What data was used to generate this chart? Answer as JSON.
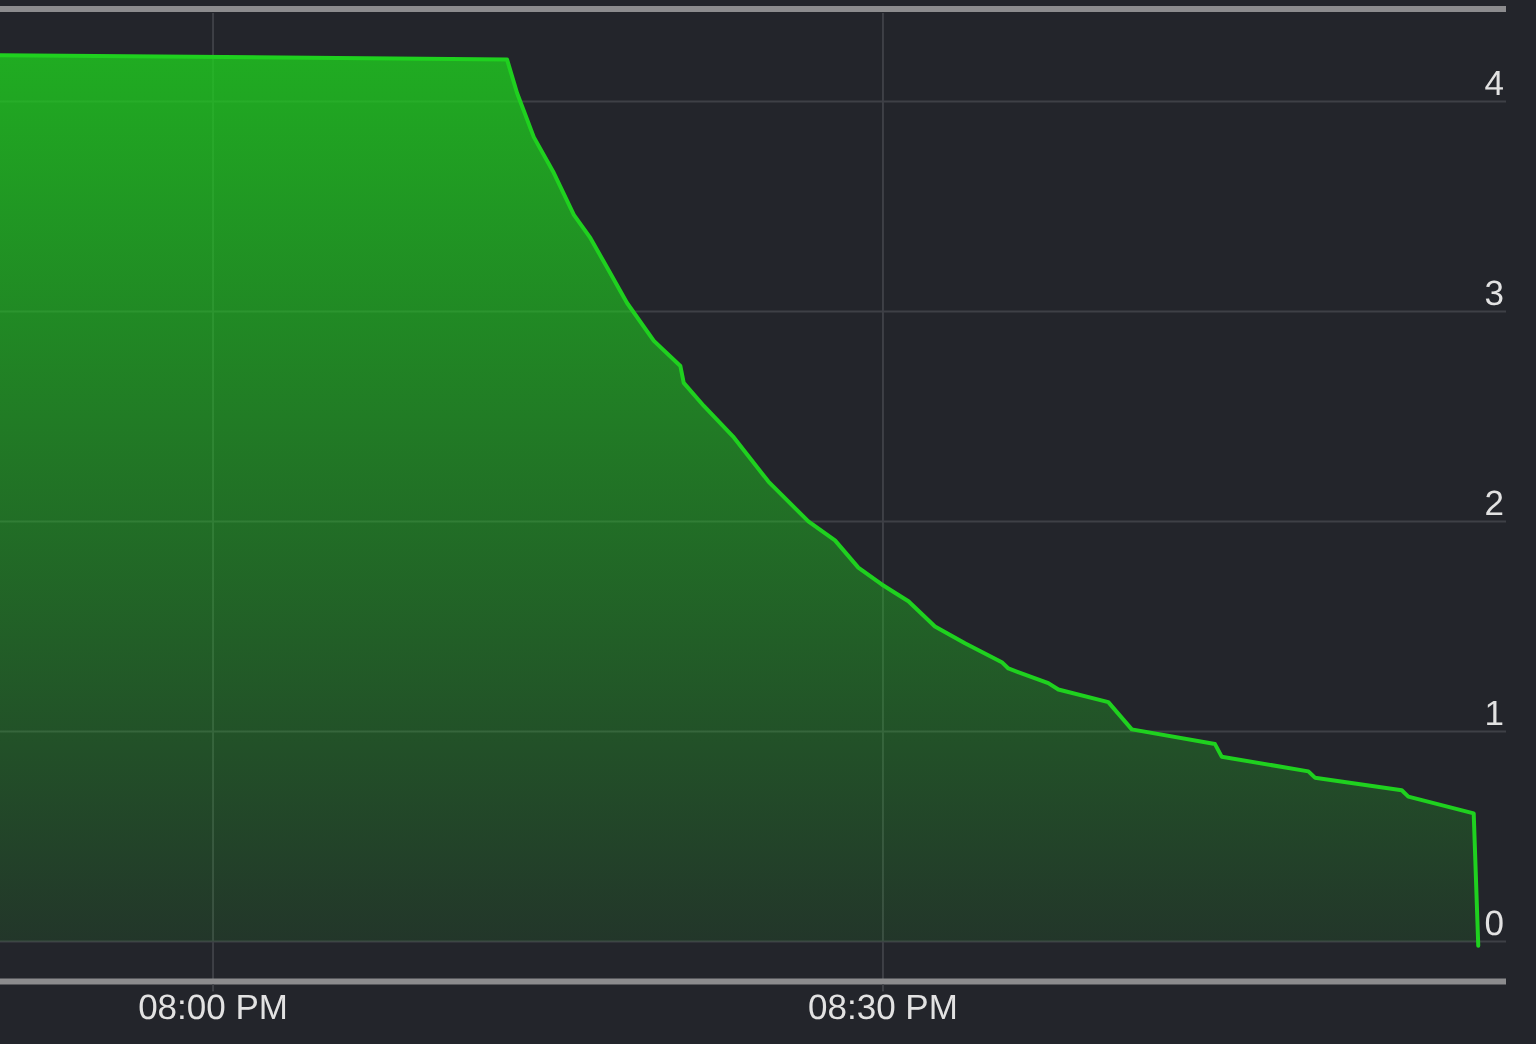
{
  "chart_data": {
    "type": "area",
    "x": [
      19.841,
      20.2194,
      20.2269,
      20.2394,
      20.2543,
      20.2693,
      20.2816,
      20.294,
      20.309,
      20.329,
      20.3488,
      20.3513,
      20.3663,
      20.3887,
      20.4145,
      20.4443,
      20.4642,
      20.4816,
      20.4991,
      20.519,
      20.5388,
      20.5612,
      20.5887,
      20.5936,
      20.6234,
      20.6309,
      20.6682,
      20.6857,
      20.7478,
      20.7528,
      20.8175,
      20.8224,
      20.8872,
      20.8921,
      20.9409,
      20.9443
    ],
    "series": [
      {
        "color": "#1fd11f",
        "values": [
          4.22,
          4.2,
          4.04,
          3.83,
          3.66,
          3.46,
          3.35,
          3.21,
          3.04,
          2.86,
          2.74,
          2.66,
          2.55,
          2.4,
          2.19,
          2.0,
          1.91,
          1.78,
          1.7,
          1.62,
          1.5,
          1.42,
          1.33,
          1.3,
          1.23,
          1.2,
          1.14,
          1.01,
          0.94,
          0.88,
          0.81,
          0.78,
          0.72,
          0.69,
          0.61,
          -0.02
        ]
      }
    ],
    "xlim": [
      19.841,
      20.965
    ],
    "ylim": [
      -0.19,
      4.44
    ],
    "xticks": [
      {
        "value": 20,
        "label": "08:00 PM"
      },
      {
        "value": 20.5,
        "label": "08:30 PM"
      }
    ],
    "yticks": [
      0,
      1,
      2,
      3,
      4
    ],
    "grid": true
  }
}
